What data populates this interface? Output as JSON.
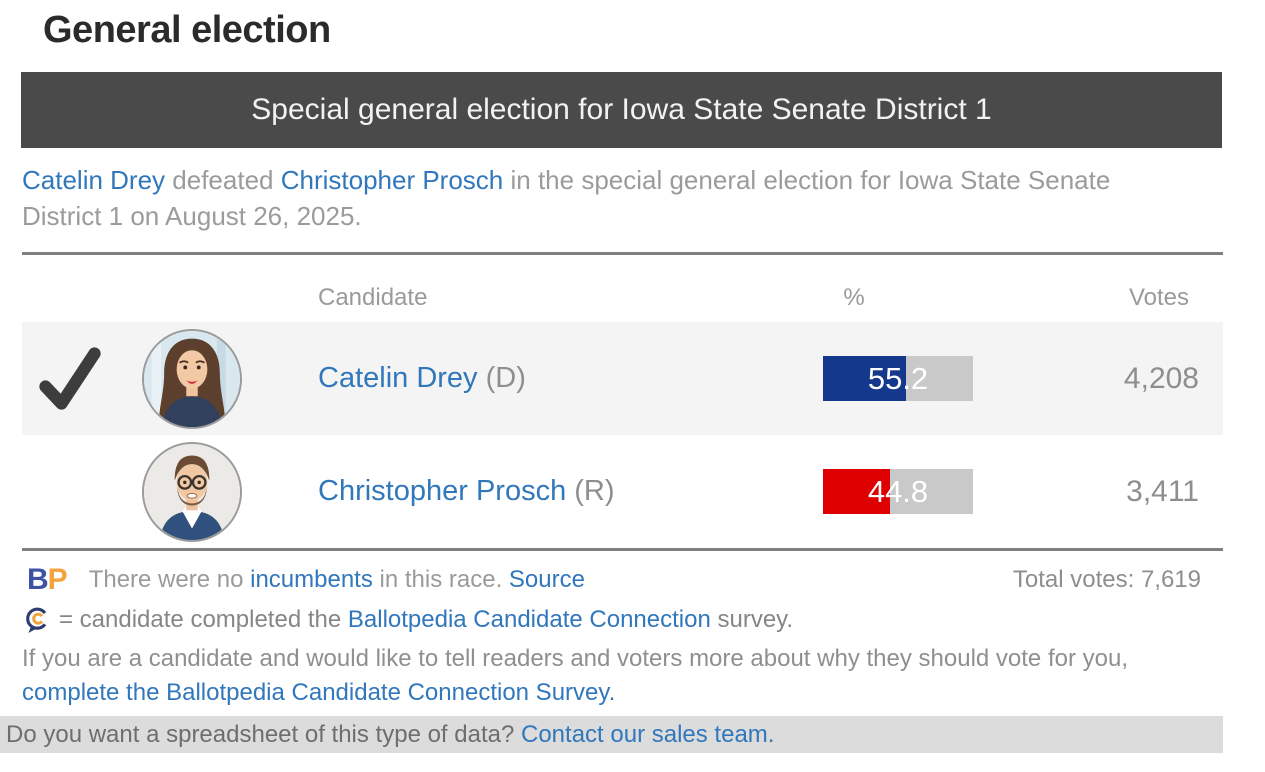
{
  "title": "General election",
  "banner": {
    "text": "Special general election for Iowa State Senate District 1"
  },
  "summary": {
    "winner_link": "Catelin Drey",
    "defeated_text": " defeated ",
    "loser_link": "Christopher Prosch",
    "rest_text": " in the special general election for Iowa State Senate District 1 on August 26, 2025."
  },
  "results_table": {
    "headers": {
      "candidate": "Candidate",
      "percent": "%",
      "votes": "Votes"
    },
    "rows": [
      {
        "winner": true,
        "name": "Catelin Drey",
        "party": " (D)",
        "percent": "55.2",
        "percent_value": 55.2,
        "votes": "4,208",
        "bar_color": "#14388c"
      },
      {
        "winner": false,
        "name": "Christopher Prosch",
        "party": " (R)",
        "percent": "44.8",
        "percent_value": 44.8,
        "votes": "3,411",
        "bar_color": "#de0000"
      }
    ],
    "total_votes": "Total votes: 7,619"
  },
  "footer": {
    "bp_logo_b": "B",
    "bp_logo_p": "P",
    "incumbents_pre": "There were no ",
    "incumbents_link": "incumbents",
    "incumbents_mid": " in this race. ",
    "source_link": "Source",
    "survey_pre": "= candidate completed the ",
    "survey_link": "Ballotpedia Candidate Connection",
    "survey_post": " survey.",
    "cta_pre": "If you are a candidate and would like to tell readers and voters more about why they should vote for you, ",
    "cta_link": "complete the Ballotpedia Candidate Connection Survey.",
    "sales_pre": "Do you want a spreadsheet of this type of data? ",
    "sales_link": "Contact our sales team."
  },
  "colors": {
    "banner_bg": "#4a4a4a",
    "link_blue": "#3177bc",
    "dem_blue": "#14388c",
    "rep_red": "#de0000",
    "bar_track": "#c9c9c9",
    "row_alt_bg": "#f4f4f4",
    "checkmark": "#3d3d3d",
    "bp_b": "#3d51a5",
    "bp_p": "#f2a33c"
  }
}
